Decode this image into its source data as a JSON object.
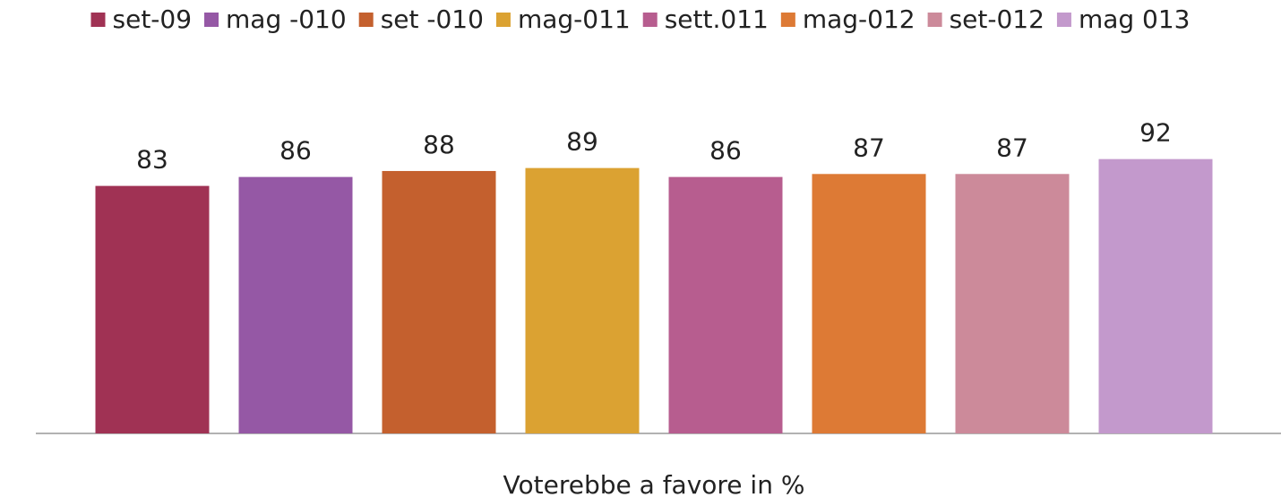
{
  "chart_data": {
    "type": "bar",
    "categories": [
      "Voterebbe a favore in %"
    ],
    "series": [
      {
        "name": "set-09",
        "color": "#a03254",
        "values": [
          83
        ]
      },
      {
        "name": "mag -010",
        "color": "#9558a5",
        "values": [
          86
        ]
      },
      {
        "name": "set -010",
        "color": "#c4602e",
        "values": [
          88
        ]
      },
      {
        "name": "mag-011",
        "color": "#dba232",
        "values": [
          89
        ]
      },
      {
        "name": "sett.011",
        "color": "#b75d8f",
        "values": [
          86
        ]
      },
      {
        "name": "mag-012",
        "color": "#dd7a35",
        "values": [
          87
        ]
      },
      {
        "name": "set-012",
        "color": "#cc8a9a",
        "values": [
          87
        ]
      },
      {
        "name": "mag 013",
        "color": "#c399cc",
        "values": [
          92
        ]
      }
    ],
    "ylim": [
      0,
      100
    ],
    "legend": "top"
  }
}
